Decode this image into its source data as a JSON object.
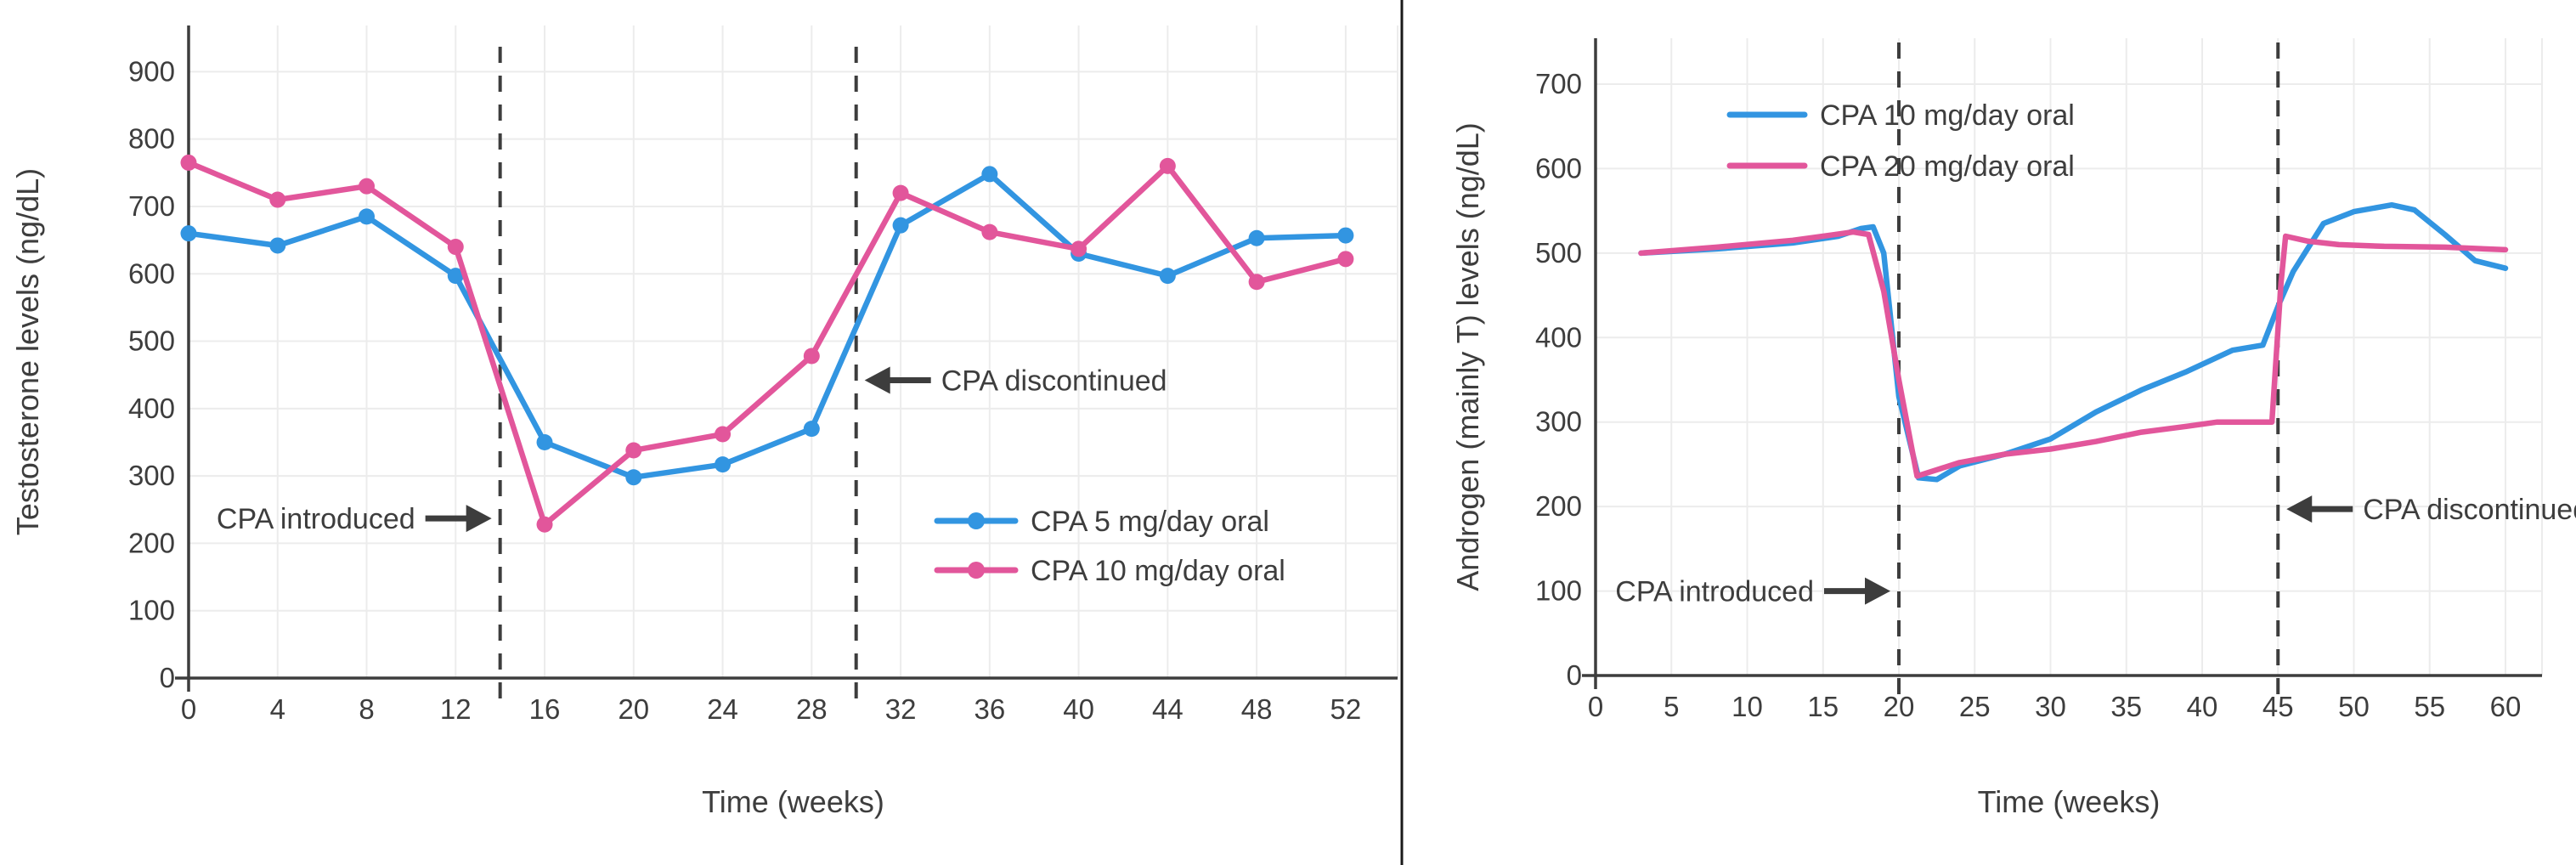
{
  "figure": {
    "background": "#ffffff",
    "divider_color": "#1a1a1a",
    "grid_color": "#ececec",
    "axis_color": "#3d3d3d",
    "text_color": "#3d3d3d",
    "accent_blue": "#3295E1",
    "accent_pink": "#E2569B"
  },
  "chart_data": [
    {
      "id": "left",
      "type": "line",
      "title": "",
      "xlabel": "Time (weeks)",
      "ylabel": "Testosterone levels (ng/dL)",
      "xticks": [
        0,
        4,
        8,
        12,
        16,
        20,
        24,
        28,
        32,
        36,
        40,
        44,
        48,
        52
      ],
      "yticks": [
        0,
        100,
        200,
        300,
        400,
        500,
        600,
        700,
        800,
        900
      ],
      "xlim": [
        0,
        54.3
      ],
      "ylim": [
        0,
        968
      ],
      "grid": true,
      "legend_position": "center-right",
      "vlines": [
        14,
        30
      ],
      "annotations": [
        {
          "label": "CPA introduced",
          "direction": "right",
          "x": 14,
          "y": 237
        },
        {
          "label": "CPA discontinued",
          "direction": "left",
          "x": 30,
          "y": 442
        }
      ],
      "series": [
        {
          "name": "CPA 5 mg/day oral",
          "color": "#3295E1",
          "marker": "circle",
          "x": [
            0,
            4,
            8,
            12,
            16,
            20,
            24,
            28,
            32,
            36,
            40,
            44,
            48,
            52
          ],
          "y": [
            660,
            642,
            685,
            597,
            350,
            298,
            317,
            370,
            672,
            748,
            630,
            597,
            653,
            657
          ]
        },
        {
          "name": "CPA 10 mg/day oral",
          "color": "#E2569B",
          "marker": "circle",
          "x": [
            0,
            4,
            8,
            12,
            16,
            20,
            24,
            28,
            32,
            36,
            40,
            44,
            48,
            52
          ],
          "y": [
            765,
            710,
            730,
            640,
            228,
            338,
            362,
            478,
            720,
            662,
            637,
            760,
            588,
            622
          ]
        }
      ]
    },
    {
      "id": "right",
      "type": "line",
      "title": "",
      "xlabel": "Time (weeks)",
      "ylabel": "Androgen (mainly T) levels (ng/dL)",
      "xticks": [
        0,
        5,
        10,
        15,
        20,
        25,
        30,
        35,
        40,
        45,
        50,
        55,
        60
      ],
      "yticks": [
        0,
        100,
        200,
        300,
        400,
        500,
        600,
        700
      ],
      "xlim": [
        0,
        62.4
      ],
      "ylim": [
        0,
        754
      ],
      "grid": true,
      "legend_position": "upper-center",
      "vlines": [
        20,
        45
      ],
      "annotations": [
        {
          "label": "CPA introduced",
          "direction": "right",
          "x": 20,
          "y": 100
        },
        {
          "label": "CPA discontinued",
          "direction": "left",
          "x": 45,
          "y": 197
        }
      ],
      "series": [
        {
          "name": "CPA 10 mg/day oral",
          "color": "#3295E1",
          "marker": "none",
          "x": [
            3,
            8,
            13,
            16,
            17.5,
            18.3,
            19,
            20,
            21.3,
            22.5,
            24,
            27,
            30,
            33,
            36,
            39,
            42,
            44,
            45,
            46,
            48,
            50,
            52.5,
            54,
            56,
            58,
            60
          ],
          "y": [
            500,
            505,
            512,
            520,
            529,
            531,
            500,
            330,
            234,
            232,
            248,
            262,
            280,
            312,
            338,
            360,
            385,
            391,
            437,
            478,
            535,
            549,
            557,
            551,
            522,
            491,
            482
          ]
        },
        {
          "name": "CPA 20 mg/day oral",
          "color": "#E2569B",
          "marker": "none",
          "x": [
            3,
            8,
            13,
            17,
            18,
            19,
            20,
            21.2,
            24,
            27,
            30,
            33,
            36,
            39,
            41,
            44.6,
            45.2,
            45.5,
            47,
            49,
            52,
            56,
            60
          ],
          "y": [
            500,
            507,
            515,
            525,
            522,
            455,
            350,
            236,
            252,
            262,
            268,
            277,
            288,
            295,
            300,
            300,
            465,
            520,
            514,
            510,
            508,
            507,
            504
          ]
        }
      ]
    }
  ]
}
